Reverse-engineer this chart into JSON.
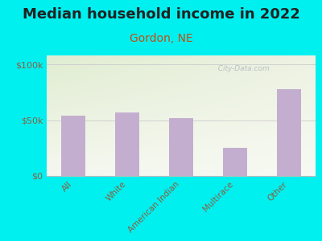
{
  "title": "Median household income in 2022",
  "subtitle": "Gordon, NE",
  "categories": [
    "All",
    "White",
    "American Indian",
    "Multirace",
    "Other"
  ],
  "values": [
    54000,
    57000,
    52000,
    25000,
    78000
  ],
  "bar_color": "#c4aed0",
  "background_outer": "#00f0f0",
  "background_inner_topleft": [
    0.88,
    0.93,
    0.82
  ],
  "background_inner_topright": [
    0.93,
    0.95,
    0.89
  ],
  "background_inner_bottomleft": [
    0.96,
    0.97,
    0.94
  ],
  "background_inner_bottomright": [
    0.97,
    0.98,
    0.95
  ],
  "yticks": [
    0,
    50000,
    100000
  ],
  "ytick_labels": [
    "$0",
    "$50k",
    "$100k"
  ],
  "ylim": [
    0,
    108000
  ],
  "title_fontsize": 13,
  "subtitle_fontsize": 10,
  "subtitle_color": "#c05010",
  "tick_label_color": "#8a6040",
  "axis_line_color": "#bbbbbb",
  "grid_color": "#cccccc",
  "watermark": "  City-Data.com",
  "watermark_color": "#b0b8c0"
}
